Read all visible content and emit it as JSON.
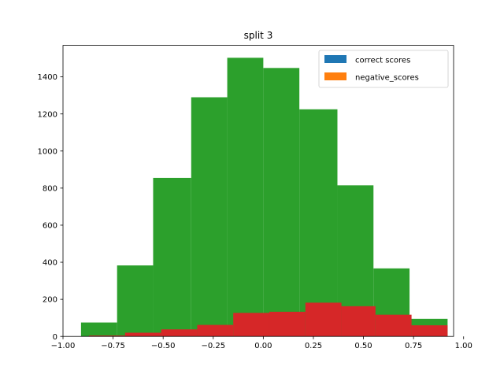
{
  "chart_data": {
    "type": "bar",
    "title": "split 3",
    "xlabel": "",
    "ylabel": "",
    "xlim": [
      -1.0,
      0.95
    ],
    "ylim": [
      0,
      1570
    ],
    "xticks": [
      -1.0,
      -0.75,
      -0.5,
      -0.25,
      0.0,
      0.25,
      0.5,
      0.75,
      1.0
    ],
    "xtick_labels": [
      "−1.00",
      "−0.75",
      "−0.50",
      "−0.25",
      "0.00",
      "0.25",
      "0.50",
      "0.75",
      "1.00"
    ],
    "yticks": [
      0,
      200,
      400,
      600,
      800,
      1000,
      1200,
      1400
    ],
    "ytick_labels": [
      "0",
      "200",
      "400",
      "600",
      "800",
      "1000",
      "1200",
      "1400"
    ],
    "grid": false,
    "legend_position": "top-right",
    "legend": [
      {
        "label": "correct scores",
        "color": "#1f77b4"
      },
      {
        "label": "negative_scores",
        "color": "#ff7f0e"
      }
    ],
    "series": [
      {
        "color": "#2ca02c",
        "bins": [
          {
            "x0": -0.91,
            "x1": -0.73,
            "value": 75
          },
          {
            "x0": -0.73,
            "x1": -0.55,
            "value": 383
          },
          {
            "x0": -0.55,
            "x1": -0.36,
            "value": 855
          },
          {
            "x0": -0.36,
            "x1": -0.18,
            "value": 1290
          },
          {
            "x0": -0.18,
            "x1": 0.0,
            "value": 1503
          },
          {
            "x0": 0.0,
            "x1": 0.18,
            "value": 1448
          },
          {
            "x0": 0.18,
            "x1": 0.37,
            "value": 1225
          },
          {
            "x0": 0.37,
            "x1": 0.55,
            "value": 815
          },
          {
            "x0": 0.55,
            "x1": 0.73,
            "value": 367
          },
          {
            "x0": 0.73,
            "x1": 0.92,
            "value": 95
          }
        ]
      },
      {
        "color": "#d62728",
        "bins": [
          {
            "x0": -0.87,
            "x1": -0.69,
            "value": 5
          },
          {
            "x0": -0.69,
            "x1": -0.51,
            "value": 20
          },
          {
            "x0": -0.51,
            "x1": -0.33,
            "value": 38
          },
          {
            "x0": -0.33,
            "x1": -0.15,
            "value": 62
          },
          {
            "x0": -0.15,
            "x1": 0.03,
            "value": 127
          },
          {
            "x0": 0.03,
            "x1": 0.21,
            "value": 133
          },
          {
            "x0": 0.21,
            "x1": 0.39,
            "value": 182
          },
          {
            "x0": 0.39,
            "x1": 0.56,
            "value": 163
          },
          {
            "x0": 0.56,
            "x1": 0.74,
            "value": 117
          },
          {
            "x0": 0.74,
            "x1": 0.92,
            "value": 60
          }
        ]
      }
    ]
  }
}
